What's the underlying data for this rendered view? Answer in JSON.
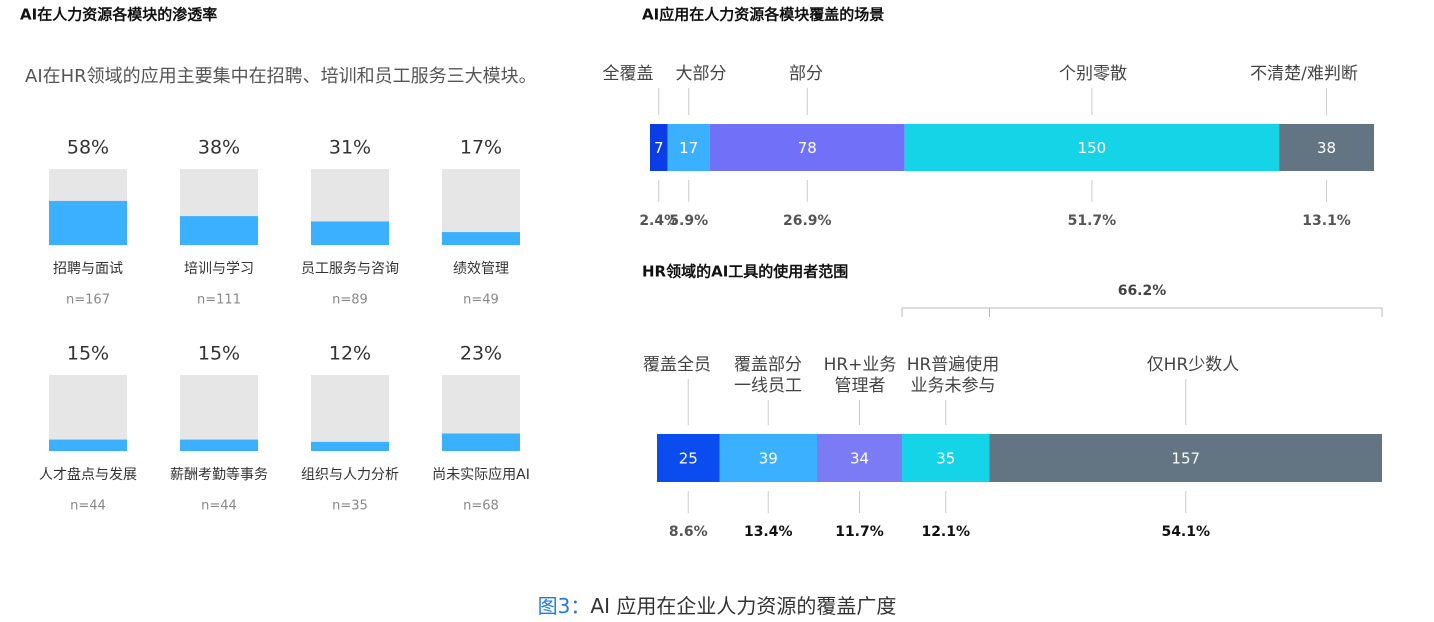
{
  "chart_data": [
    {
      "type": "bar-grid",
      "title": "AI在人力资源各模块的渗透率",
      "subtitle": "AI在HR领域的应用主要集中在招聘、培训和员工服务三大模块。",
      "categories": [
        "招聘与面试",
        "培训与学习",
        "员工服务与咨询",
        "绩效管理",
        "人才盘点与发展",
        "薪酬考勤等事务",
        "组织与人力分析",
        "尚未实际应用AI"
      ],
      "values": [
        58,
        38,
        31,
        17,
        15,
        15,
        12,
        23
      ],
      "value_labels": [
        "58%",
        "38%",
        "31%",
        "17%",
        "15%",
        "15%",
        "12%",
        "23%"
      ],
      "sample_labels": [
        "n=167",
        "n=111",
        "n=89",
        "n=49",
        "n=44",
        "n=44",
        "n=35",
        "n=68"
      ],
      "ylim": [
        0,
        100
      ],
      "color": "#3bb0ff",
      "background_color": "#e6e6e6"
    },
    {
      "type": "stacked-bar",
      "title": "AI应用在人力资源各模块覆盖的场景",
      "categories": [
        [
          "全覆盖"
        ],
        [
          "大部分"
        ],
        [
          "部分"
        ],
        [
          "个别零散"
        ],
        [
          "不清楚/难判断"
        ]
      ],
      "values": [
        7,
        17,
        78,
        150,
        38
      ],
      "colors": [
        "#0a3de8",
        "#3bb0ff",
        "#7070f8",
        "#15d4e8",
        "#637482"
      ],
      "percents": [
        2.4,
        5.9,
        26.9,
        51.7,
        13.1
      ],
      "percent_labels": [
        "2.4%",
        "5.9%",
        "26.9%",
        "51.7%",
        "13.1%"
      ]
    },
    {
      "type": "stacked-bar",
      "title": "HR领域的AI工具的使用者范围",
      "categories": [
        [
          "覆盖全员"
        ],
        [
          "覆盖部分",
          "一线员工"
        ],
        [
          "HR+业务",
          "管理者"
        ],
        [
          "HR普遍使用",
          "业务未参与"
        ],
        [
          "仅HR少数人"
        ]
      ],
      "values": [
        25,
        39,
        34,
        35,
        157
      ],
      "colors": [
        "#0b4cf0",
        "#3bb0ff",
        "#7b7bf5",
        "#15d4e8",
        "#637482"
      ],
      "percents": [
        8.6,
        13.4,
        11.7,
        12.1,
        54.1
      ],
      "percent_labels": [
        "8.6%",
        "13.4%",
        "11.7%",
        "12.1%",
        "54.1%"
      ],
      "bracket": {
        "value": 66.2,
        "label": "66.2%"
      }
    }
  ],
  "caption": {
    "prefix": "图3：",
    "text": "AI 应用在企业人力资源的覆盖广度"
  }
}
